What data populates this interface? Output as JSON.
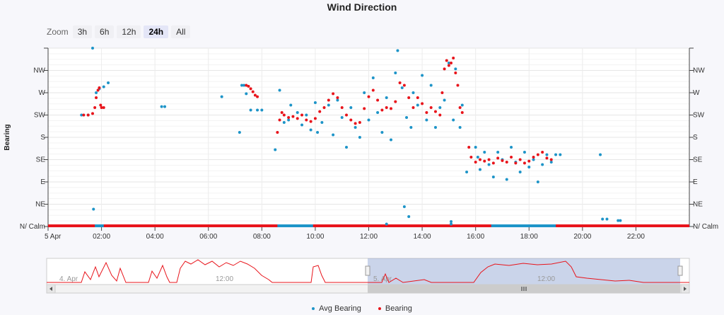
{
  "chart_data": {
    "type": "scatter",
    "title": "Wind Direction",
    "ylabel": "Bearing",
    "x_time_start": "00:00",
    "x_time_end": "24:00",
    "x_ticks": [
      "5 Apr",
      "02:00",
      "04:00",
      "06:00",
      "08:00",
      "10:00",
      "12:00",
      "14:00",
      "16:00",
      "18:00",
      "20:00",
      "22:00"
    ],
    "y_ticks": [
      "N/ Calm",
      "NE",
      "E",
      "SE",
      "S",
      "SW",
      "W",
      "NW"
    ],
    "ylim": [
      0,
      360
    ],
    "grid": true,
    "legend_position": "bottom",
    "series": [
      {
        "name": "Avg Bearing",
        "color": "#1d94c8",
        "points": [
          [
            "01:15",
            225
          ],
          [
            "01:30",
            225
          ],
          [
            "01:40",
            360
          ],
          [
            "01:42",
            35
          ],
          [
            "01:48",
            270
          ],
          [
            "01:55",
            278
          ],
          [
            "02:05",
            282
          ],
          [
            "02:15",
            290
          ],
          [
            "04:15",
            242
          ],
          [
            "04:22",
            242
          ],
          [
            "06:30",
            262
          ],
          [
            "07:15",
            285
          ],
          [
            "07:20",
            285
          ],
          [
            "07:25",
            268
          ],
          [
            "07:10",
            190
          ],
          [
            "07:35",
            235
          ],
          [
            "07:50",
            235
          ],
          [
            "08:00",
            235
          ],
          [
            "08:30",
            155
          ],
          [
            "08:40",
            275
          ],
          [
            "08:50",
            210
          ],
          [
            "09:00",
            215
          ],
          [
            "09:05",
            245
          ],
          [
            "09:20",
            230
          ],
          [
            "09:30",
            205
          ],
          [
            "09:40",
            225
          ],
          [
            "09:50",
            195
          ],
          [
            "10:00",
            250
          ],
          [
            "10:05",
            190
          ],
          [
            "10:15",
            210
          ],
          [
            "10:30",
            245
          ],
          [
            "10:40",
            185
          ],
          [
            "10:50",
            255
          ],
          [
            "11:00",
            220
          ],
          [
            "11:10",
            160
          ],
          [
            "11:20",
            240
          ],
          [
            "11:30",
            200
          ],
          [
            "11:40",
            180
          ],
          [
            "11:50",
            270
          ],
          [
            "12:00",
            215
          ],
          [
            "12:10",
            300
          ],
          [
            "12:20",
            230
          ],
          [
            "12:30",
            190
          ],
          [
            "12:40",
            260
          ],
          [
            "12:50",
            175
          ],
          [
            "13:00",
            310
          ],
          [
            "13:05",
            355
          ],
          [
            "13:15",
            280
          ],
          [
            "13:25",
            220
          ],
          [
            "13:30",
            20
          ],
          [
            "13:35",
            200
          ],
          [
            "13:40",
            270
          ],
          [
            "13:50",
            245
          ],
          [
            "14:00",
            305
          ],
          [
            "14:10",
            215
          ],
          [
            "14:20",
            285
          ],
          [
            "14:30",
            200
          ],
          [
            "14:40",
            240
          ],
          [
            "14:50",
            255
          ],
          [
            "15:00",
            330
          ],
          [
            "15:05",
            10
          ],
          [
            "15:10",
            215
          ],
          [
            "15:15",
            318
          ],
          [
            "15:25",
            200
          ],
          [
            "15:30",
            245
          ],
          [
            "15:40",
            110
          ],
          [
            "16:00",
            160
          ],
          [
            "16:05",
            140
          ],
          [
            "16:10",
            115
          ],
          [
            "16:20",
            150
          ],
          [
            "16:30",
            125
          ],
          [
            "16:40",
            100
          ],
          [
            "16:50",
            150
          ],
          [
            "17:00",
            135
          ],
          [
            "17:10",
            95
          ],
          [
            "17:20",
            160
          ],
          [
            "17:30",
            130
          ],
          [
            "17:40",
            110
          ],
          [
            "17:50",
            150
          ],
          [
            "18:00",
            120
          ],
          [
            "18:10",
            135
          ],
          [
            "18:20",
            90
          ],
          [
            "18:30",
            125
          ],
          [
            "18:40",
            145
          ],
          [
            "18:50",
            130
          ],
          [
            "19:00",
            145
          ],
          [
            "19:10",
            145
          ],
          [
            "20:40",
            145
          ],
          [
            "20:45",
            15
          ],
          [
            "20:55",
            15
          ],
          [
            "21:20",
            12
          ],
          [
            "21:25",
            12
          ],
          [
            "13:20",
            40
          ],
          [
            "12:40",
            5
          ],
          [
            "15:05",
            5
          ]
        ]
      },
      {
        "name": "Bearing",
        "color": "#e8141b",
        "points": [
          [
            "01:20",
            225
          ],
          [
            "01:30",
            225
          ],
          [
            "01:40",
            228
          ],
          [
            "01:45",
            240
          ],
          [
            "01:48",
            260
          ],
          [
            "01:52",
            275
          ],
          [
            "01:55",
            280
          ],
          [
            "01:58",
            245
          ],
          [
            "02:00",
            240
          ],
          [
            "02:05",
            240
          ],
          [
            "07:25",
            285
          ],
          [
            "07:30",
            283
          ],
          [
            "07:35",
            278
          ],
          [
            "07:40",
            272
          ],
          [
            "07:45",
            265
          ],
          [
            "07:50",
            262
          ],
          [
            "08:35",
            190
          ],
          [
            "08:40",
            215
          ],
          [
            "08:45",
            230
          ],
          [
            "08:50",
            225
          ],
          [
            "09:00",
            220
          ],
          [
            "09:10",
            222
          ],
          [
            "09:20",
            218
          ],
          [
            "09:30",
            225
          ],
          [
            "09:40",
            215
          ],
          [
            "09:50",
            212
          ],
          [
            "10:00",
            218
          ],
          [
            "10:10",
            232
          ],
          [
            "10:20",
            240
          ],
          [
            "10:30",
            255
          ],
          [
            "10:40",
            268
          ],
          [
            "10:50",
            260
          ],
          [
            "11:00",
            240
          ],
          [
            "11:10",
            225
          ],
          [
            "11:20",
            215
          ],
          [
            "11:30",
            208
          ],
          [
            "11:40",
            210
          ],
          [
            "11:50",
            238
          ],
          [
            "12:00",
            262
          ],
          [
            "12:10",
            275
          ],
          [
            "12:20",
            255
          ],
          [
            "12:30",
            235
          ],
          [
            "12:40",
            240
          ],
          [
            "12:50",
            238
          ],
          [
            "13:00",
            252
          ],
          [
            "13:10",
            290
          ],
          [
            "13:20",
            285
          ],
          [
            "13:30",
            260
          ],
          [
            "13:40",
            240
          ],
          [
            "13:50",
            260
          ],
          [
            "14:00",
            248
          ],
          [
            "14:10",
            230
          ],
          [
            "14:20",
            240
          ],
          [
            "14:30",
            232
          ],
          [
            "14:40",
            225
          ],
          [
            "14:45",
            270
          ],
          [
            "14:50",
            318
          ],
          [
            "14:55",
            335
          ],
          [
            "15:00",
            325
          ],
          [
            "15:05",
            330
          ],
          [
            "15:10",
            340
          ],
          [
            "15:15",
            310
          ],
          [
            "15:20",
            285
          ],
          [
            "15:25",
            240
          ],
          [
            "15:30",
            230
          ],
          [
            "15:45",
            160
          ],
          [
            "15:50",
            140
          ],
          [
            "16:00",
            130
          ],
          [
            "16:10",
            135
          ],
          [
            "16:20",
            132
          ],
          [
            "16:30",
            135
          ],
          [
            "16:40",
            128
          ],
          [
            "16:50",
            138
          ],
          [
            "17:00",
            133
          ],
          [
            "17:10",
            130
          ],
          [
            "17:20",
            140
          ],
          [
            "17:30",
            128
          ],
          [
            "17:40",
            135
          ],
          [
            "17:50",
            128
          ],
          [
            "18:00",
            132
          ],
          [
            "18:10",
            140
          ],
          [
            "18:20",
            145
          ],
          [
            "18:30",
            150
          ],
          [
            "18:40",
            138
          ],
          [
            "18:50",
            135
          ]
        ]
      }
    ],
    "navigator": {
      "ticks": [
        "4. Apr",
        "12:00",
        "5. Apr",
        "12:00"
      ]
    }
  },
  "ui": {
    "zoom_label": "Zoom",
    "zoom_buttons": [
      "3h",
      "6h",
      "12h",
      "24h",
      "All"
    ],
    "zoom_active": "24h"
  },
  "legend": {
    "avg_label": "Avg Bearing",
    "bearing_label": "Bearing"
  }
}
